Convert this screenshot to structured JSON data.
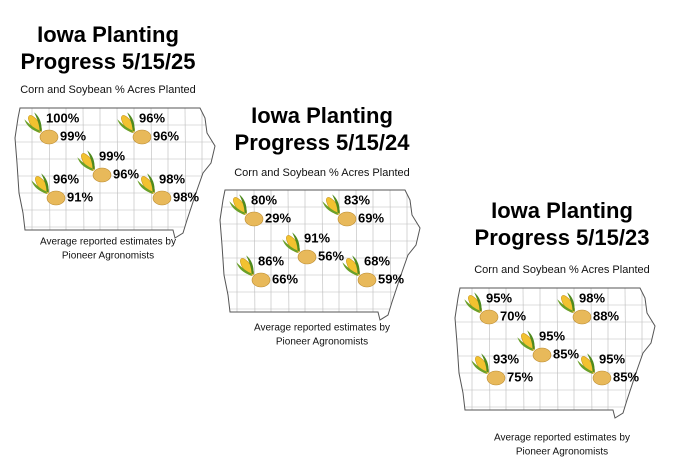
{
  "panels": [
    {
      "title_lines": [
        "Iowa Planting",
        "Progress 5/15/25"
      ],
      "subtitle": "Corn and Soybean % Acres Planted",
      "regions": [
        {
          "corn": "100%",
          "soy": "99%"
        },
        {
          "corn": "96%",
          "soy": "96%"
        },
        {
          "corn": "99%",
          "soy": "96%"
        },
        {
          "corn": "96%",
          "soy": "91%"
        },
        {
          "corn": "98%",
          "soy": "98%"
        }
      ],
      "footer_lines": [
        "Average reported estimates by",
        "Pioneer Agronomists"
      ]
    },
    {
      "title_lines": [
        "Iowa Planting",
        "Progress 5/15/24"
      ],
      "subtitle": "Corn and Soybean % Acres Planted",
      "regions": [
        {
          "corn": "80%",
          "soy": "29%"
        },
        {
          "corn": "83%",
          "soy": "69%"
        },
        {
          "corn": "91%",
          "soy": "56%"
        },
        {
          "corn": "86%",
          "soy": "66%"
        },
        {
          "corn": "68%",
          "soy": "59%"
        }
      ],
      "footer_lines": [
        "Average reported estimates by",
        "Pioneer Agronomists"
      ]
    },
    {
      "title_lines": [
        "Iowa Planting",
        "Progress 5/15/23"
      ],
      "subtitle": "Corn and Soybean % Acres Planted",
      "regions": [
        {
          "corn": "95%",
          "soy": "70%"
        },
        {
          "corn": "98%",
          "soy": "88%"
        },
        {
          "corn": "95%",
          "soy": "85%"
        },
        {
          "corn": "93%",
          "soy": "75%"
        },
        {
          "corn": "95%",
          "soy": "85%"
        }
      ],
      "footer_lines": [
        "Average reported estimates by",
        "Pioneer Agronomists"
      ]
    }
  ]
}
